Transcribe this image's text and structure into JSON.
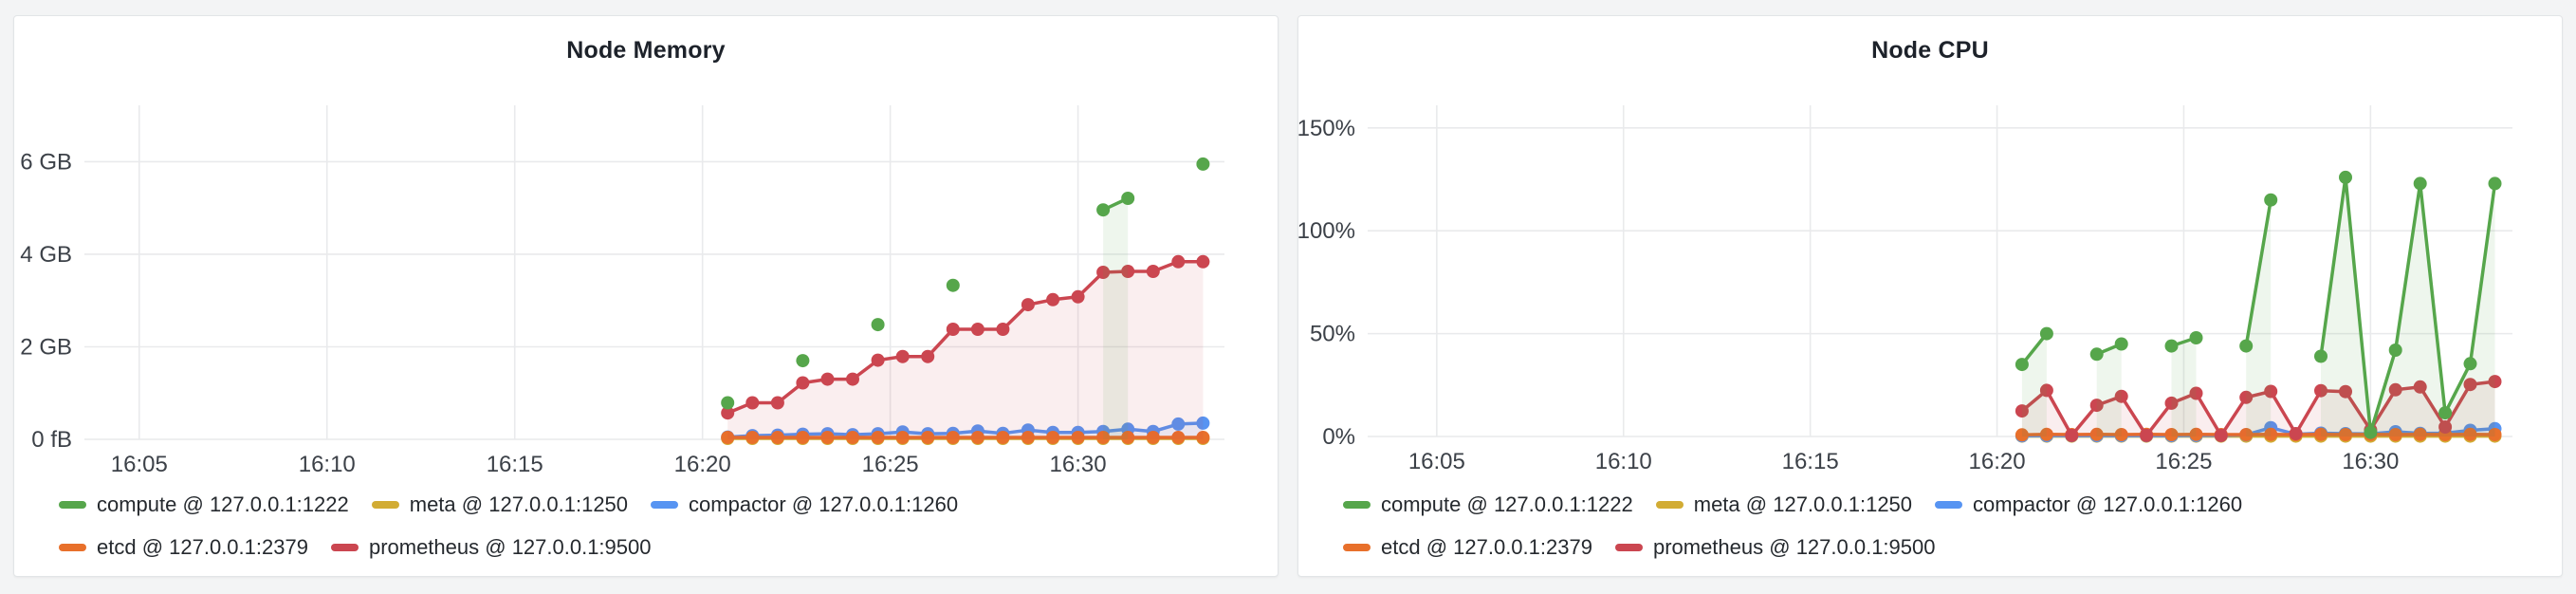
{
  "page": {
    "background": "#f3f4f5",
    "panel_background": "#ffffff"
  },
  "colors": {
    "compute": "#56A64B",
    "meta": "#D2AC34",
    "compactor": "#5794F2",
    "etcd": "#E8702B",
    "prometheus": "#CB4650",
    "grid": "#e9eaec",
    "tick_text": "#3c4148",
    "title_text": "#1d222a"
  },
  "legend": {
    "rows": [
      [
        0,
        1,
        2
      ],
      [
        3,
        4
      ]
    ],
    "items": [
      {
        "label": "compute @ 127.0.0.1:1222",
        "color": "#56A64B"
      },
      {
        "label": "meta @ 127.0.0.1:1250",
        "color": "#D2AC34"
      },
      {
        "label": "compactor @ 127.0.0.1:1260",
        "color": "#5794F2"
      },
      {
        "label": "etcd @ 127.0.0.1:2379",
        "color": "#E8702B"
      },
      {
        "label": "prometheus @ 127.0.0.1:9500",
        "color": "#CB4650"
      }
    ]
  },
  "chart_data": [
    {
      "type": "line",
      "title": "Node Memory",
      "value_unit": "GB",
      "x_unit": "minutes after 16:00",
      "xlim": [
        3.54,
        33.9
      ],
      "ylim": [
        0,
        7.22
      ],
      "grid": true,
      "legend_position": "bottom",
      "x_ticks": [
        {
          "v": 5,
          "label": "16:05"
        },
        {
          "v": 10,
          "label": "16:10"
        },
        {
          "v": 15,
          "label": "16:15"
        },
        {
          "v": 20,
          "label": "16:20"
        },
        {
          "v": 25,
          "label": "16:25"
        },
        {
          "v": 30,
          "label": "16:30"
        }
      ],
      "y_ticks": [
        {
          "v": 0,
          "label": "0 fB"
        },
        {
          "v": 2,
          "label": "2 GB"
        },
        {
          "v": 4,
          "label": "4 GB"
        },
        {
          "v": 6,
          "label": "6 GB"
        }
      ],
      "series": [
        {
          "name": "meta @ 127.0.0.1:1250",
          "color": "#D2AC34",
          "fill_opacity": 0.06,
          "segments": [
            [
              [
                20.67,
                0.02
              ],
              [
                21.33,
                0.02
              ],
              [
                22,
                0.02
              ],
              [
                22.67,
                0.02
              ],
              [
                23.33,
                0.02
              ],
              [
                24,
                0.02
              ],
              [
                24.67,
                0.02
              ],
              [
                25.33,
                0.02
              ],
              [
                26,
                0.02
              ],
              [
                26.67,
                0.02
              ],
              [
                27.33,
                0.02
              ],
              [
                28,
                0.02
              ],
              [
                28.67,
                0.02
              ],
              [
                29.33,
                0.02
              ],
              [
                30,
                0.02
              ],
              [
                30.67,
                0.02
              ],
              [
                31.33,
                0.02
              ],
              [
                32,
                0.02
              ],
              [
                32.67,
                0.02
              ],
              [
                33.33,
                0.02
              ]
            ]
          ]
        },
        {
          "name": "compactor @ 127.0.0.1:1260",
          "color": "#5794F2",
          "fill_opacity": 0.1,
          "segments": [
            [
              [
                20.67,
                0.05
              ],
              [
                21.33,
                0.08
              ],
              [
                22,
                0.09
              ],
              [
                22.67,
                0.11
              ],
              [
                23.33,
                0.12
              ],
              [
                24,
                0.1
              ],
              [
                24.67,
                0.12
              ],
              [
                25.33,
                0.16
              ],
              [
                26,
                0.12
              ],
              [
                26.67,
                0.13
              ],
              [
                27.33,
                0.18
              ],
              [
                28,
                0.13
              ],
              [
                28.67,
                0.2
              ],
              [
                29.33,
                0.15
              ],
              [
                30,
                0.15
              ],
              [
                30.67,
                0.17
              ],
              [
                31.33,
                0.22
              ],
              [
                32,
                0.17
              ],
              [
                32.67,
                0.33
              ],
              [
                33.33,
                0.35
              ]
            ]
          ]
        },
        {
          "name": "etcd @ 127.0.0.1:2379",
          "color": "#E8702B",
          "fill_opacity": 0.06,
          "segments": [
            [
              [
                20.67,
                0.04
              ],
              [
                21.33,
                0.04
              ],
              [
                22,
                0.04
              ],
              [
                22.67,
                0.04
              ],
              [
                23.33,
                0.04
              ],
              [
                24,
                0.04
              ],
              [
                24.67,
                0.04
              ],
              [
                25.33,
                0.04
              ],
              [
                26,
                0.04
              ],
              [
                26.67,
                0.04
              ],
              [
                27.33,
                0.04
              ],
              [
                28,
                0.04
              ],
              [
                28.67,
                0.04
              ],
              [
                29.33,
                0.04
              ],
              [
                30,
                0.04
              ],
              [
                30.67,
                0.04
              ],
              [
                31.33,
                0.04
              ],
              [
                32,
                0.04
              ],
              [
                32.67,
                0.04
              ],
              [
                33.33,
                0.04
              ]
            ]
          ]
        },
        {
          "name": "prometheus @ 127.0.0.1:9500",
          "color": "#CB4650",
          "fill_opacity": 0.09,
          "segments": [
            [
              [
                20.67,
                0.57
              ],
              [
                21.33,
                0.79
              ],
              [
                22,
                0.79
              ],
              [
                22.67,
                1.22
              ],
              [
                23.33,
                1.3
              ],
              [
                24,
                1.3
              ],
              [
                24.67,
                1.71
              ],
              [
                25.33,
                1.79
              ],
              [
                26,
                1.79
              ],
              [
                26.67,
                2.38
              ],
              [
                27.33,
                2.38
              ],
              [
                28,
                2.38
              ],
              [
                28.67,
                2.91
              ],
              [
                29.33,
                3.02
              ],
              [
                30,
                3.08
              ],
              [
                30.67,
                3.61
              ],
              [
                31.33,
                3.63
              ],
              [
                32,
                3.63
              ],
              [
                32.67,
                3.84
              ],
              [
                33.33,
                3.84
              ]
            ]
          ]
        },
        {
          "name": "compute @ 127.0.0.1:1222",
          "color": "#56A64B",
          "fill_opacity": 0.1,
          "segments": [
            [
              [
                20.67,
                0.79
              ]
            ],
            [
              [
                22.67,
                1.7
              ]
            ],
            [
              [
                24.67,
                2.48
              ]
            ],
            [
              [
                26.67,
                3.33
              ]
            ],
            [
              [
                30.67,
                4.96
              ],
              [
                31.33,
                5.21
              ]
            ],
            [
              [
                33.33,
                5.95
              ]
            ]
          ]
        }
      ]
    },
    {
      "type": "line",
      "title": "Node CPU",
      "value_unit": "percent",
      "x_unit": "minutes after 16:00",
      "xlim": [
        3.15,
        33.8
      ],
      "ylim": [
        0,
        161
      ],
      "grid": true,
      "legend_position": "bottom",
      "x_ticks": [
        {
          "v": 5,
          "label": "16:05"
        },
        {
          "v": 10,
          "label": "16:10"
        },
        {
          "v": 15,
          "label": "16:15"
        },
        {
          "v": 20,
          "label": "16:20"
        },
        {
          "v": 25,
          "label": "16:25"
        },
        {
          "v": 30,
          "label": "16:30"
        }
      ],
      "y_ticks": [
        {
          "v": 0,
          "label": "0%"
        },
        {
          "v": 50,
          "label": "50%"
        },
        {
          "v": 100,
          "label": "100%"
        },
        {
          "v": 150,
          "label": "150%"
        }
      ],
      "series": [
        {
          "name": "meta @ 127.0.0.1:1250",
          "color": "#D2AC34",
          "fill_opacity": 0.06,
          "segments": [
            [
              [
                20.67,
                0.2
              ],
              [
                21.33,
                0.2
              ],
              [
                22,
                0.2
              ],
              [
                22.67,
                0.2
              ],
              [
                23.33,
                0.2
              ],
              [
                24,
                0.2
              ],
              [
                24.67,
                0.2
              ],
              [
                25.33,
                0.2
              ],
              [
                26,
                0.2
              ],
              [
                26.67,
                0.2
              ],
              [
                27.33,
                0.2
              ],
              [
                28,
                0.2
              ],
              [
                28.67,
                0.2
              ],
              [
                29.33,
                0.2
              ],
              [
                30,
                0.2
              ],
              [
                30.67,
                0.2
              ],
              [
                31.33,
                0.2
              ],
              [
                32,
                0.2
              ],
              [
                32.67,
                0.2
              ],
              [
                33.33,
                0.2
              ]
            ]
          ]
        },
        {
          "name": "compactor @ 127.0.0.1:1260",
          "color": "#5794F2",
          "fill_opacity": 0.1,
          "segments": [
            [
              [
                20.67,
                0.3
              ],
              [
                21.33,
                0.4
              ],
              [
                22,
                0.4
              ],
              [
                22.67,
                0.4
              ],
              [
                23.33,
                0.4
              ],
              [
                24,
                0.4
              ],
              [
                24.67,
                0.4
              ],
              [
                25.33,
                0.5
              ],
              [
                26,
                0.5
              ],
              [
                26.67,
                0.8
              ],
              [
                27.33,
                4.3
              ],
              [
                28,
                1.1
              ],
              [
                28.67,
                1.6
              ],
              [
                29.33,
                1.4
              ],
              [
                30,
                1.3
              ],
              [
                30.67,
                2.3
              ],
              [
                31.33,
                1.5
              ],
              [
                32,
                1.6
              ],
              [
                32.67,
                3.0
              ],
              [
                33.33,
                3.8
              ]
            ]
          ]
        },
        {
          "name": "etcd @ 127.0.0.1:2379",
          "color": "#E8702B",
          "fill_opacity": 0.06,
          "segments": [
            [
              [
                20.67,
                0.8
              ],
              [
                21.33,
                1
              ],
              [
                22,
                0.9
              ],
              [
                22.67,
                1
              ],
              [
                23.33,
                0.9
              ],
              [
                24,
                1
              ],
              [
                24.67,
                0.9
              ],
              [
                25.33,
                1
              ],
              [
                26,
                0.9
              ],
              [
                26.67,
                0.9
              ],
              [
                27.33,
                1
              ],
              [
                28,
                0.9
              ],
              [
                28.67,
                1
              ],
              [
                29.33,
                0.9
              ],
              [
                30,
                1
              ],
              [
                30.67,
                0.9
              ],
              [
                31.33,
                1
              ],
              [
                32,
                0.9
              ],
              [
                32.67,
                1
              ],
              [
                33.33,
                0.9
              ]
            ]
          ]
        },
        {
          "name": "prometheus @ 127.0.0.1:9500",
          "color": "#CB4650",
          "fill_opacity": 0.09,
          "segments": [
            [
              [
                20.67,
                12.4
              ],
              [
                21.33,
                22.4
              ],
              [
                22,
                0.5
              ],
              [
                22.67,
                15.2
              ],
              [
                23.33,
                19.5
              ],
              [
                24,
                0.5
              ],
              [
                24.67,
                16.2
              ],
              [
                25.33,
                21
              ],
              [
                26,
                0.5
              ],
              [
                26.67,
                19
              ],
              [
                27.33,
                21.9
              ],
              [
                28,
                1.4
              ],
              [
                28.67,
                22.3
              ],
              [
                29.33,
                21.8
              ],
              [
                30,
                3.2
              ],
              [
                30.67,
                22.7
              ],
              [
                31.33,
                24.1
              ],
              [
                32,
                4.6
              ],
              [
                32.67,
                25.3
              ],
              [
                33.33,
                26.7
              ]
            ]
          ]
        },
        {
          "name": "compute @ 127.0.0.1:1222",
          "color": "#56A64B",
          "fill_opacity": 0.1,
          "segments": [
            [
              [
                20.67,
                35
              ],
              [
                21.33,
                50
              ]
            ],
            [
              [
                22.67,
                40
              ],
              [
                23.33,
                45
              ]
            ],
            [
              [
                24.67,
                44
              ],
              [
                25.33,
                48
              ]
            ],
            [
              [
                26.67,
                44
              ],
              [
                27.33,
                115
              ]
            ],
            [
              [
                28.67,
                39
              ],
              [
                29.33,
                126
              ],
              [
                30,
                2
              ],
              [
                30.67,
                42
              ],
              [
                31.33,
                123
              ],
              [
                32,
                11.5
              ],
              [
                32.67,
                35.4
              ],
              [
                33.33,
                123
              ]
            ]
          ]
        }
      ]
    }
  ]
}
